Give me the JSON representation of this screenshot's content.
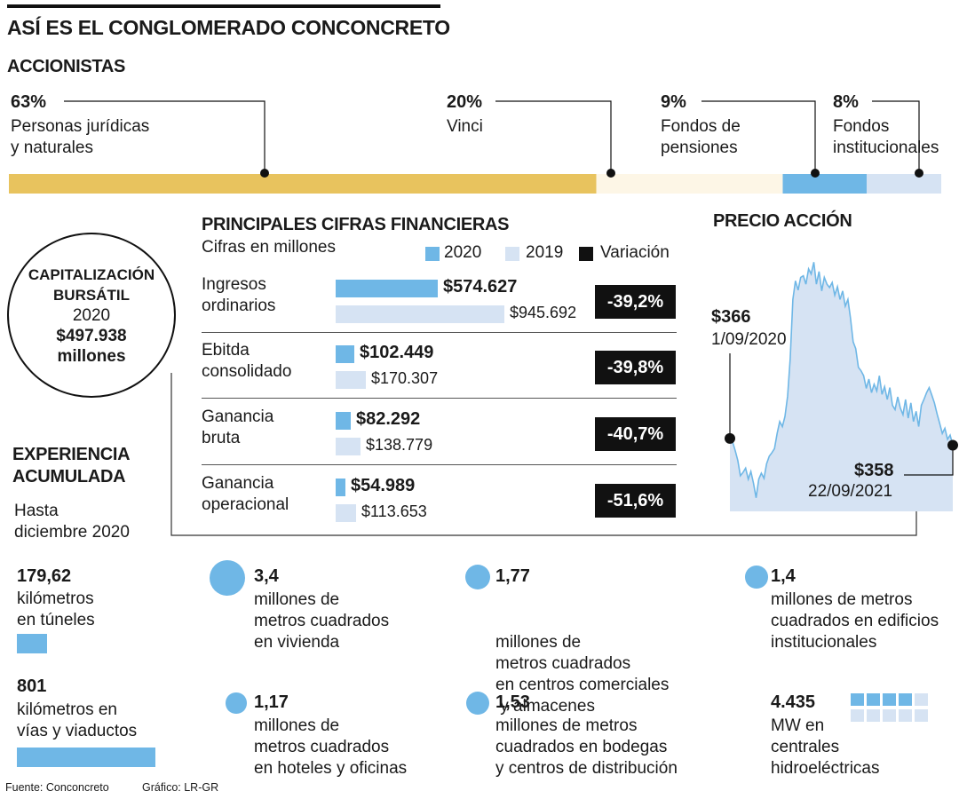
{
  "title": "ASÍ ES EL CONGLOMERADO CONCONCRETO",
  "shareholders": {
    "heading": "ACCIONISTAS",
    "items": [
      {
        "pct": "63%",
        "label_1": "Personas jurídicas",
        "label_2": "y naturales",
        "value": 63,
        "color": "#e8c35e"
      },
      {
        "pct": "20%",
        "label_1": "Vinci",
        "label_2": "",
        "value": 20,
        "color": "#fdf6e6"
      },
      {
        "pct": "9%",
        "label_1": "Fondos de",
        "label_2": "pensiones",
        "value": 9,
        "color": "#6fb7e6"
      },
      {
        "pct": "8%",
        "label_1": "Fondos",
        "label_2": "institucionales",
        "value": 8,
        "color": "#d6e3f3"
      }
    ]
  },
  "capitalization": {
    "line1": "CAPITALIZACIÓN",
    "line2": "BURSÁTIL",
    "line3": "2020",
    "line4": "$497.938",
    "line5": "millones"
  },
  "financials": {
    "heading": "PRINCIPALES CIFRAS FINANCIERAS",
    "subheading": "Cifras en millones",
    "legend": {
      "y2020": "2020",
      "y2019": "2019",
      "variation": "Variación"
    },
    "colors": {
      "y2020": "#6fb7e6",
      "y2019": "#d6e3f3",
      "variation": "#111111"
    },
    "rows": [
      {
        "name_1": "Ingresos",
        "name_2": "ordinarios",
        "v2020": 574627,
        "v2019": 945692,
        "v2020_label": "$574.627",
        "v2019_label": "$945.692",
        "variation": "-39,2%"
      },
      {
        "name_1": "Ebitda",
        "name_2": "consolidado",
        "v2020": 102449,
        "v2019": 170307,
        "v2020_label": "$102.449",
        "v2019_label": "$170.307",
        "variation": "-39,8%"
      },
      {
        "name_1": "Ganancia",
        "name_2": "bruta",
        "v2020": 82292,
        "v2019": 138779,
        "v2020_label": "$82.292",
        "v2019_label": "$138.779",
        "variation": "-40,7%"
      },
      {
        "name_1": "Ganancia",
        "name_2": "operacional",
        "v2020": 54989,
        "v2019": 113653,
        "v2020_label": "$54.989",
        "v2019_label": "$113.653",
        "variation": "-51,6%"
      }
    ]
  },
  "chart_data": {
    "type": "area",
    "title": "PRECIO ACCIÓN",
    "start": {
      "price": "$366",
      "date": "1/09/2020",
      "value": 366
    },
    "end": {
      "price": "$358",
      "date": "22/09/2021",
      "value": 358
    },
    "ylim": [
      280,
      590
    ],
    "values": [
      366,
      362,
      352,
      340,
      322,
      326,
      331,
      318,
      327,
      313,
      296,
      318,
      325,
      319,
      336,
      345,
      349,
      354,
      372,
      386,
      380,
      392,
      416,
      460,
      530,
      552,
      541,
      556,
      558,
      548,
      566,
      560,
      574,
      548,
      563,
      540,
      556,
      548,
      544,
      550,
      535,
      545,
      530,
      540,
      522,
      530,
      508,
      480,
      472,
      450,
      446,
      440,
      425,
      436,
      420,
      430,
      422,
      440,
      418,
      427,
      412,
      426,
      405,
      400,
      415,
      402,
      394,
      412,
      390,
      408,
      386,
      398,
      380,
      405,
      412,
      420,
      426,
      417,
      408,
      395,
      384,
      372,
      378,
      365,
      370,
      358
    ],
    "line_color": "#6fb7e6",
    "fill_color": "#d6e3f3"
  },
  "experience": {
    "heading_1": "EXPERIENCIA",
    "heading_2": "ACUMULADA",
    "sub_1": "Hasta",
    "sub_2": "diciembre 2020",
    "tunnels": {
      "num": "179,62",
      "l1": "kilómetros",
      "l2": "en túneles",
      "value": 179.62
    },
    "roads": {
      "num": "801",
      "l1": "kilómetros en",
      "l2": "vías y viaductos",
      "value": 801
    },
    "items": [
      {
        "num": "3,4",
        "l1": "millones de",
        "l2": "metros cuadrados",
        "l3": "en vivienda",
        "l4": "",
        "value": 3.4
      },
      {
        "num": "1,77",
        "l1": "millones de",
        "l2": "metros cuadrados",
        "l3": "en centros comerciales",
        "l4": " y almacenes",
        "value": 1.77
      },
      {
        "num": "1,4",
        "l1": "millones de metros",
        "l2": "cuadrados en edificios",
        "l3": "institucionales",
        "l4": "",
        "value": 1.4
      },
      {
        "num": "1,17",
        "l1": "millones de",
        "l2": "metros cuadrados",
        "l3": "en hoteles y oficinas",
        "l4": "",
        "value": 1.17
      },
      {
        "num": "1,53",
        "l1": "millones de metros",
        "l2": "cuadrados en bodegas",
        "l3": "y centros de distribución",
        "l4": "",
        "value": 1.53
      }
    ],
    "hydro": {
      "num": "4.435",
      "l1": "MW en",
      "l2": "centrales",
      "l3": "hidroeléctricas",
      "value": 4435
    }
  },
  "footer": {
    "source": "Fuente: Conconcreto",
    "graphic": "Gráfico: LR-GR"
  }
}
